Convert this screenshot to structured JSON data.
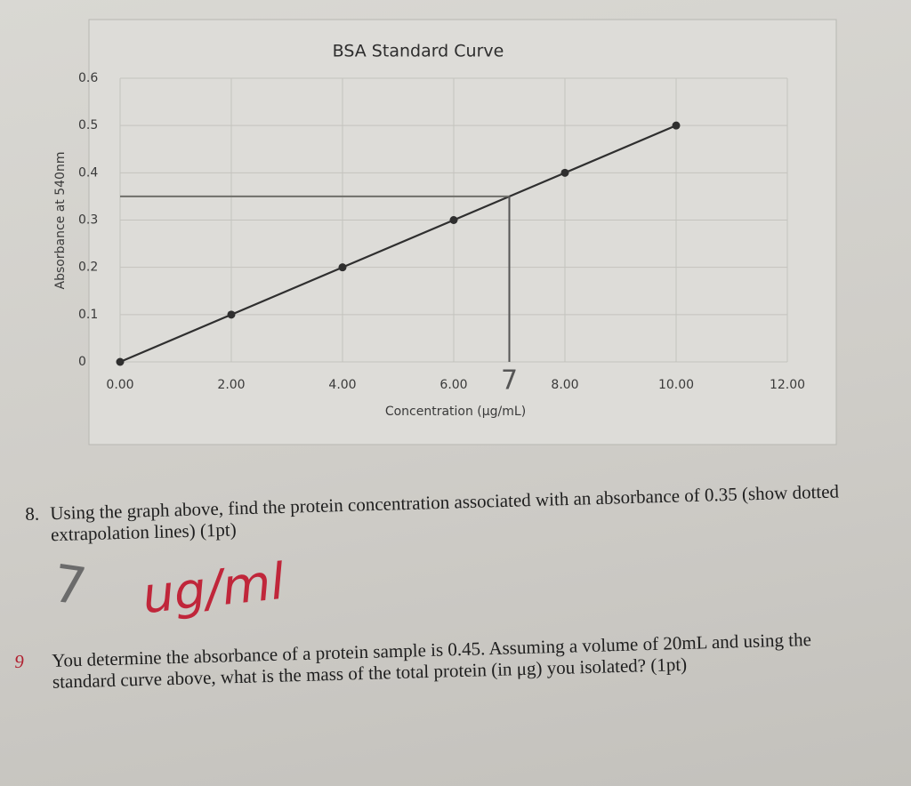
{
  "chart_data": {
    "type": "line",
    "title": "BSA Standard Curve",
    "x_label": "Concentration (μg/mL)",
    "y_label": "Absorbance at 540nm",
    "x": [
      0,
      2,
      4,
      6,
      8,
      10
    ],
    "series": [
      {
        "name": "BSA",
        "color": "#2f2f2f",
        "values": [
          0,
          0.1,
          0.2,
          0.3,
          0.4,
          0.5
        ]
      }
    ],
    "xlim": [
      0,
      12
    ],
    "ylim": [
      0,
      0.6
    ],
    "xticks": [
      {
        "value": 0,
        "label": "0.00"
      },
      {
        "value": 2,
        "label": "2.00"
      },
      {
        "value": 4,
        "label": "4.00"
      },
      {
        "value": 6,
        "label": "6.00"
      },
      {
        "value": 8,
        "label": "8.00"
      },
      {
        "value": 10,
        "label": "10.00"
      },
      {
        "value": 12,
        "label": "12.00"
      }
    ],
    "yticks": [
      0,
      0.1,
      0.2,
      0.3,
      0.4,
      0.5,
      0.6
    ],
    "grid": true,
    "extrapolation": {
      "y": 0.35,
      "x": 7
    },
    "annotation": "7"
  },
  "handwriting": {
    "answer": "7",
    "unit": "ug/ml"
  },
  "questions": [
    {
      "number": "8.",
      "text": "Using the graph above, find the protein concentration associated with an absorbance of 0.35 (show dotted extrapolation lines) (1pt)"
    },
    {
      "number": "9",
      "text": "You determine the absorbance of a protein sample is 0.45. Assuming a volume of 20mL and using the standard curve above, what is the mass of the total protein (in μg) you isolated? (1pt)"
    }
  ]
}
